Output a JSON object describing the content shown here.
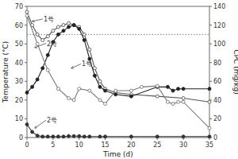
{
  "chart_data": {
    "type": "line",
    "xlabel": "Time (d)",
    "ylabel": "Temperature (°C)",
    "y2label": "CPC (mg/kg)",
    "xlim": [
      0,
      35
    ],
    "ylim": [
      0,
      70
    ],
    "y2lim": [
      0,
      140
    ],
    "xticks": [
      0,
      5,
      10,
      15,
      20,
      25,
      30,
      35
    ],
    "yticks": [
      0,
      10,
      20,
      30,
      40,
      50,
      60,
      70
    ],
    "y2ticks": [
      0,
      20,
      40,
      60,
      80,
      100,
      120,
      140
    ],
    "grid": false,
    "reference_lines": [
      {
        "y": 55,
        "line_style": "dotted",
        "color": "gray"
      }
    ],
    "series": [
      {
        "color": "#555555",
        "marker": "circle-open",
        "axis": "y",
        "x": [
          0,
          1,
          2,
          3,
          4,
          5,
          6,
          7,
          8,
          9,
          10,
          11,
          12,
          13,
          14,
          15,
          17,
          20,
          25,
          30,
          35
        ],
        "values": [
          67,
          60,
          55,
          52,
          54,
          57,
          59,
          60,
          61,
          60,
          59,
          55,
          47,
          37,
          30,
          26,
          24,
          23,
          22,
          21,
          19
        ]
      },
      {
        "color": "#222222",
        "marker": "circle",
        "axis": "y",
        "x": [
          0,
          1,
          2,
          3,
          4,
          5,
          6,
          7,
          8,
          9,
          10,
          11,
          12,
          13,
          14,
          15,
          17,
          20,
          25,
          27,
          28,
          29,
          30,
          35
        ],
        "values": [
          24,
          27,
          31,
          37,
          44,
          51,
          55,
          57,
          59,
          60,
          58,
          52,
          42,
          33,
          27,
          25,
          23,
          22,
          27,
          27,
          25,
          26,
          26,
          26
        ]
      },
      {
        "color": "#777777",
        "marker": "circle-open",
        "axis": "y2",
        "x": [
          0,
          2,
          4,
          6,
          8,
          9,
          10,
          12,
          14,
          15,
          17,
          20,
          22,
          25,
          27,
          28,
          29,
          30,
          35
        ],
        "values": [
          130,
          100,
          72,
          52,
          42,
          40,
          52,
          50,
          40,
          36,
          50,
          50,
          54,
          55,
          38,
          36,
          38,
          38,
          10
        ]
      },
      {
        "color": "#333333",
        "marker": "circle",
        "axis": "y2",
        "x": [
          0,
          1,
          2,
          3,
          4,
          5,
          6,
          7,
          8,
          9,
          10,
          11,
          12,
          14,
          15,
          20,
          25,
          30,
          35
        ],
        "values": [
          14,
          6,
          2,
          1,
          1,
          1,
          1,
          1,
          1.5,
          1.5,
          1.5,
          1,
          1,
          1,
          1,
          1,
          1,
          1,
          1
        ]
      }
    ],
    "annotations": [
      {
        "text": "1号",
        "x": 1.0,
        "y": 62,
        "text_x": 3.2,
        "text_y": 62
      },
      {
        "text": "2号",
        "x": 1.5,
        "y": 48,
        "text_x": 3.8,
        "text_y": 49
      },
      {
        "text": "1号",
        "x": 8.5,
        "y": 37,
        "text_x": 10.5,
        "text_y": 38
      },
      {
        "text": "2号",
        "x": 1.5,
        "y": 5,
        "text_x": 3.8,
        "text_y": 8
      }
    ]
  }
}
